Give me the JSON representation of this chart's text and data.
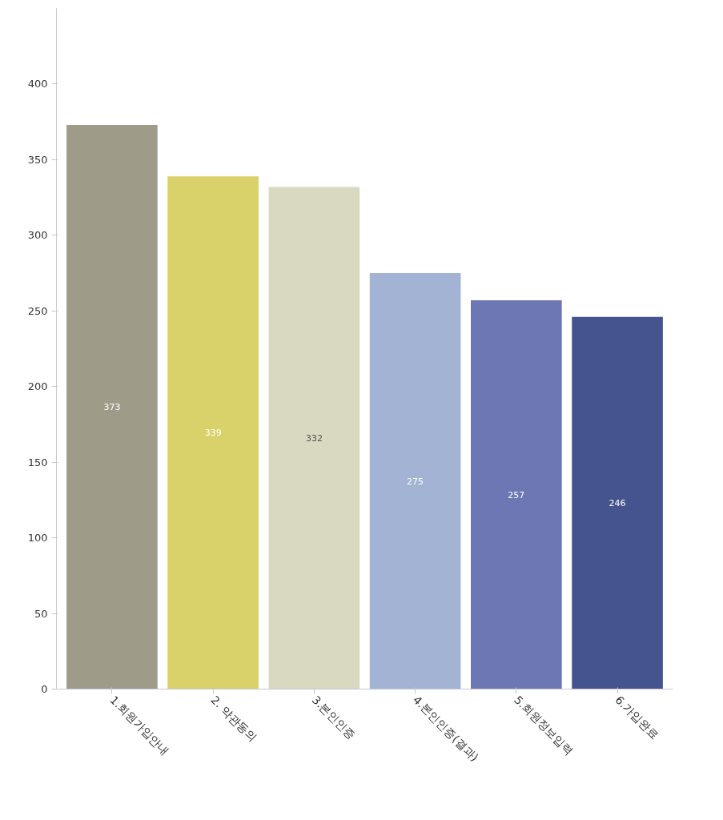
{
  "chart_data": {
    "type": "bar",
    "categories": [
      "1.회원가입안내",
      "2. 약관동의",
      "3.본인인증",
      "4.본인인증(결과)",
      "5.회원정보입력",
      "6.가입완료"
    ],
    "values": [
      373,
      339,
      332,
      275,
      257,
      246
    ],
    "colors": [
      "#9e9c89",
      "#d9d16a",
      "#d9d8c1",
      "#a3b3d4",
      "#6c77b3",
      "#45548f"
    ],
    "ylim": [
      0,
      450
    ],
    "yticks": [
      0,
      50,
      100,
      150,
      200,
      250,
      300,
      350,
      400
    ],
    "data_labels": true,
    "grid": false
  }
}
